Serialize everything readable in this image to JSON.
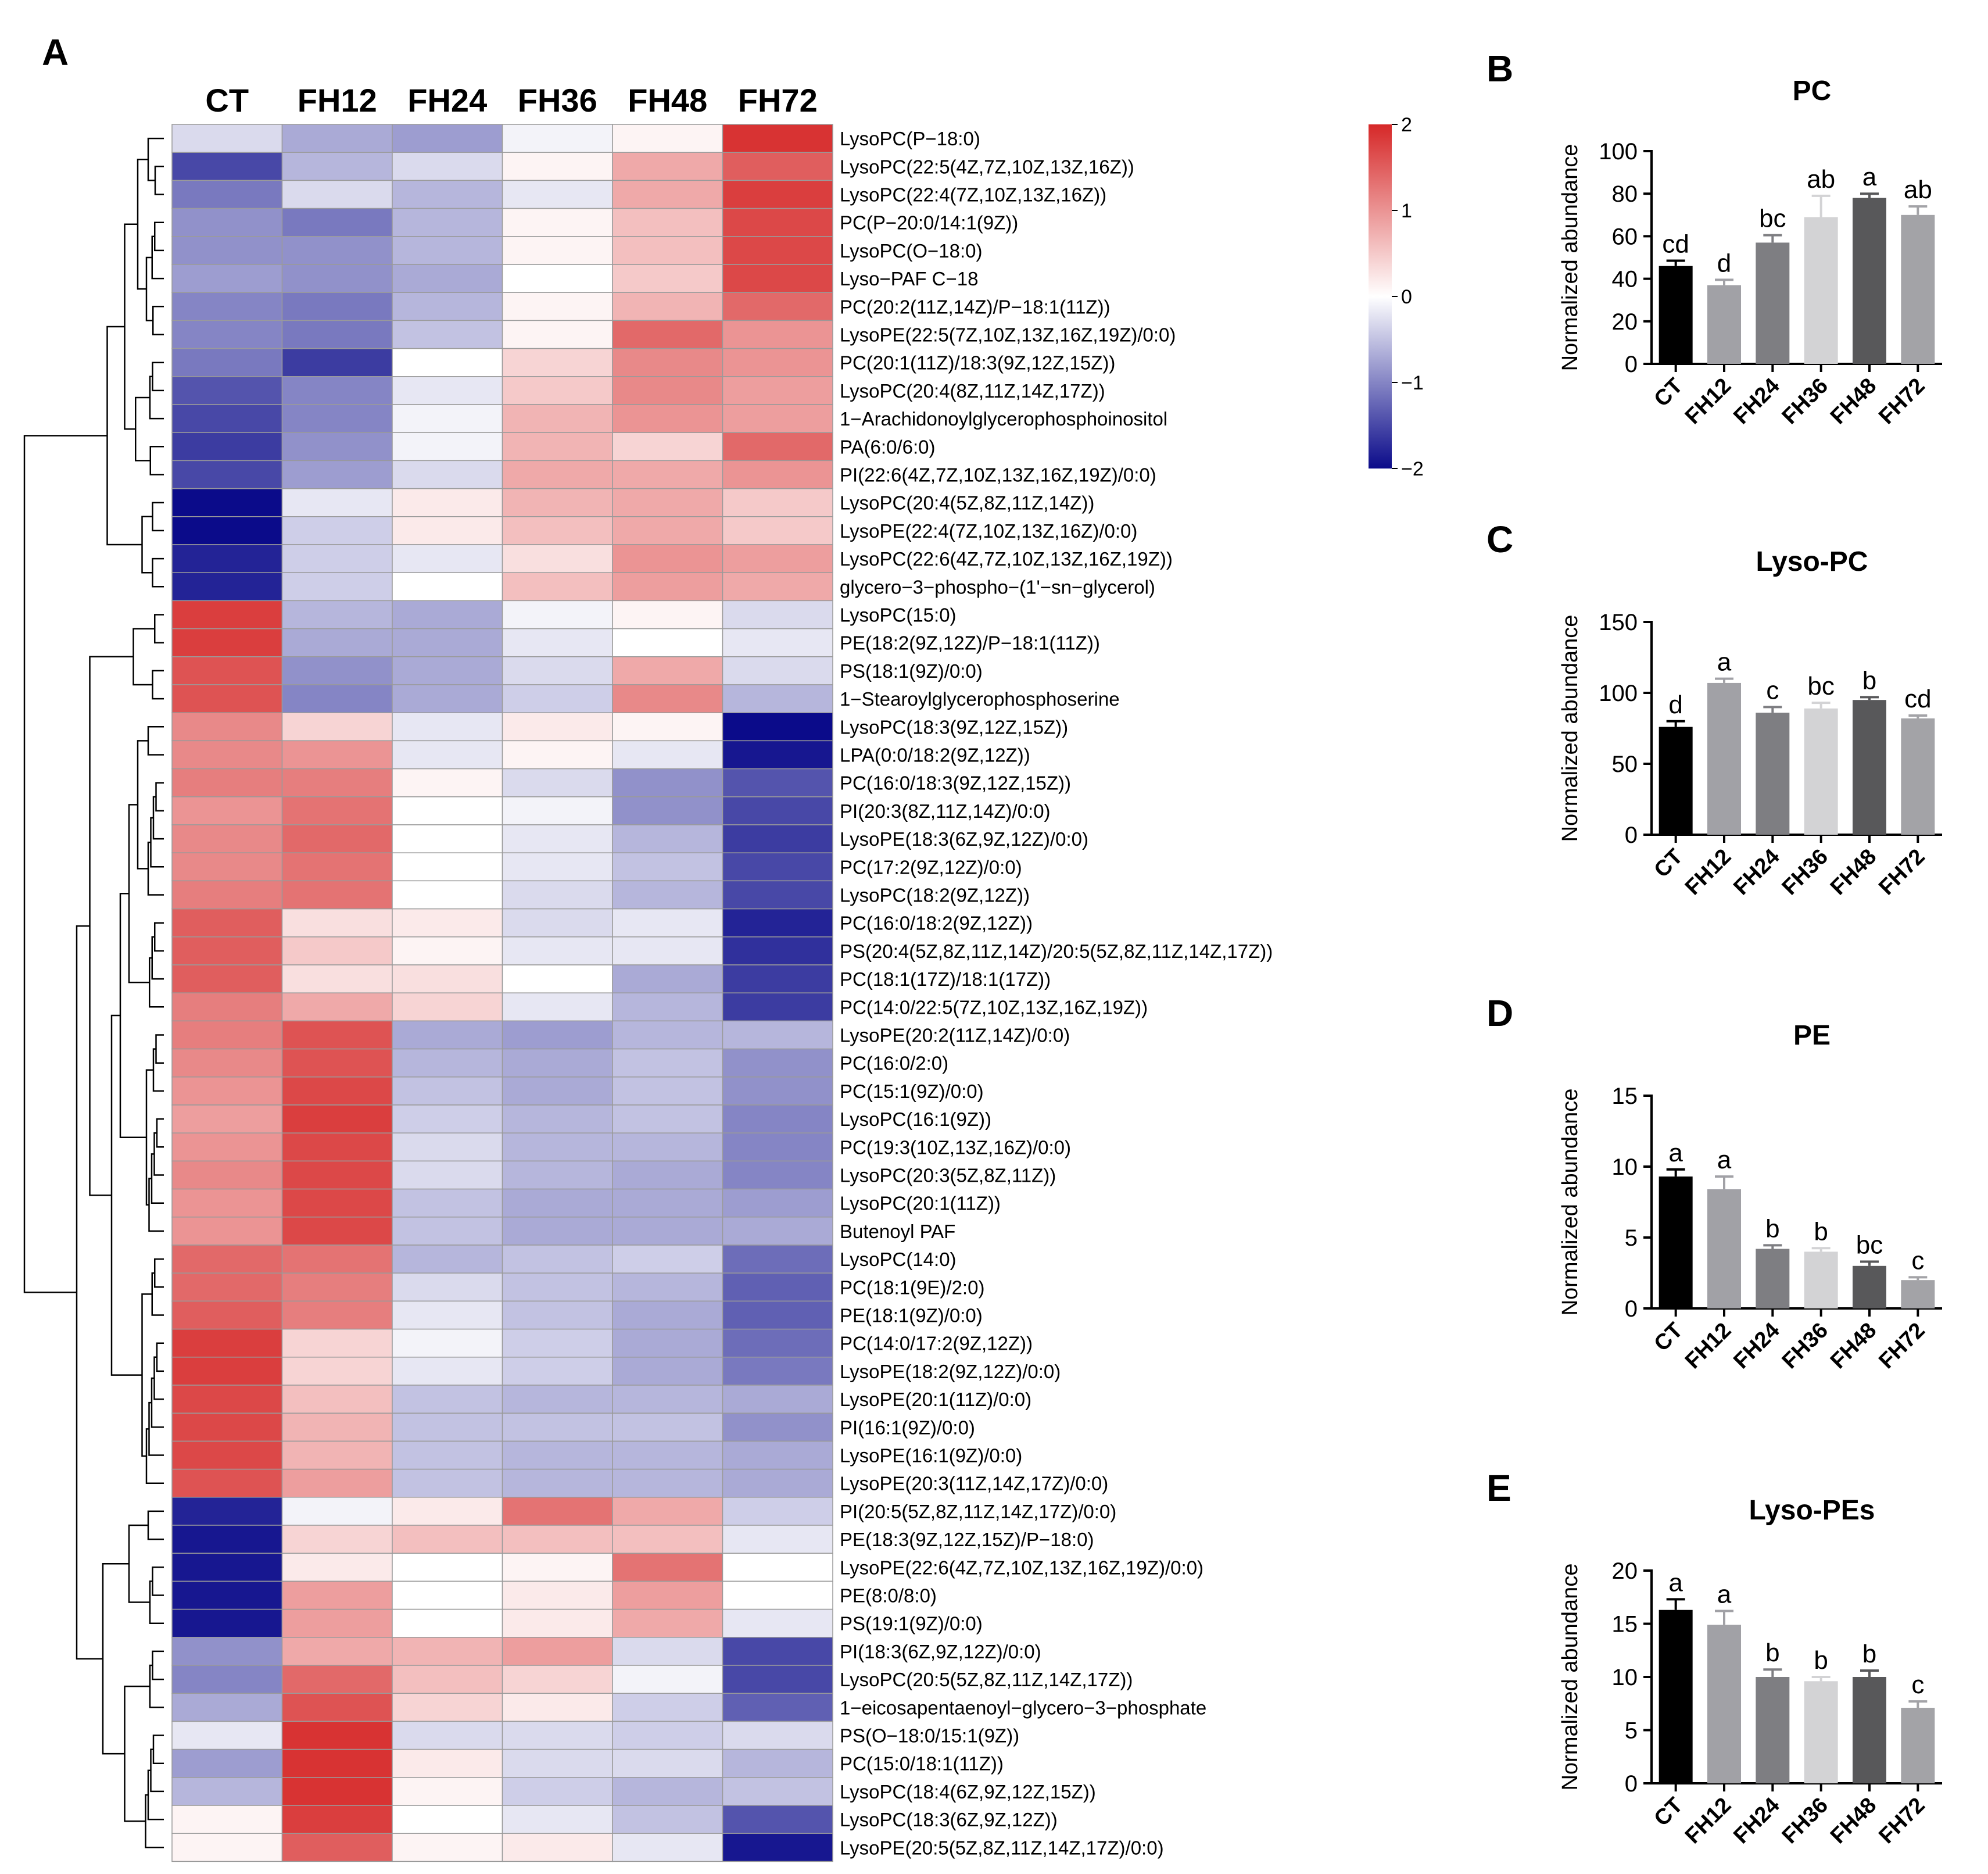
{
  "chart_data": [
    {
      "panel": "A",
      "type": "heatmap",
      "title": "",
      "columns": [
        "CT",
        "FH12",
        "FH24",
        "FH36",
        "FH48",
        "FH72"
      ],
      "legend": {
        "ticks": [
          2,
          1,
          0,
          -1,
          -2
        ],
        "range": [
          -2,
          2
        ],
        "position": "top-right"
      },
      "rows": [
        {
          "label": "LysoPC(P−18:0)",
          "values": [
            -0.3,
            -0.7,
            -0.8,
            -0.1,
            0.1,
            1.9
          ]
        },
        {
          "label": "LysoPC(22:5(4Z,7Z,10Z,13Z,16Z))",
          "values": [
            -1.5,
            -0.6,
            -0.3,
            0.1,
            0.8,
            1.5
          ]
        },
        {
          "label": "LysoPC(22:4(7Z,10Z,13Z,16Z))",
          "values": [
            -1.1,
            -0.3,
            -0.6,
            -0.2,
            0.8,
            1.8
          ]
        },
        {
          "label": "PC(P−20:0/14:1(9Z))",
          "values": [
            -0.9,
            -1.1,
            -0.6,
            0.1,
            0.6,
            1.7
          ]
        },
        {
          "label": "LysoPC(O−18:0)",
          "values": [
            -0.9,
            -0.9,
            -0.6,
            0.1,
            0.6,
            1.7
          ]
        },
        {
          "label": "Lyso−PAF C−18",
          "values": [
            -0.8,
            -0.9,
            -0.7,
            0.0,
            0.5,
            1.7
          ]
        },
        {
          "label": "PC(20:2(11Z,14Z)/P−18:1(11Z))",
          "values": [
            -1.0,
            -1.1,
            -0.6,
            0.1,
            0.7,
            1.4
          ]
        },
        {
          "label": "LysoPE(22:5(7Z,10Z,13Z,16Z,19Z)/0:0)",
          "values": [
            -1.0,
            -1.1,
            -0.5,
            0.1,
            1.4,
            1.0
          ]
        },
        {
          "label": "PC(20:1(11Z)/18:3(9Z,12Z,15Z))",
          "values": [
            -1.1,
            -1.6,
            0.0,
            0.4,
            1.1,
            1.0
          ]
        },
        {
          "label": "LysoPC(20:4(8Z,11Z,14Z,17Z))",
          "values": [
            -1.4,
            -1.0,
            -0.2,
            0.5,
            1.1,
            0.9
          ]
        },
        {
          "label": "1−Arachidonoylglycerophosphoinositol",
          "values": [
            -1.5,
            -1.0,
            -0.1,
            0.7,
            1.0,
            0.9
          ]
        },
        {
          "label": "PA(6:0/6:0)",
          "values": [
            -1.6,
            -0.9,
            -0.1,
            0.7,
            0.4,
            1.4
          ]
        },
        {
          "label": "PI(22:6(4Z,7Z,10Z,13Z,16Z,19Z)/0:0)",
          "values": [
            -1.5,
            -0.8,
            -0.3,
            0.8,
            0.8,
            1.0
          ]
        },
        {
          "label": "LysoPC(20:4(5Z,8Z,11Z,14Z))",
          "values": [
            -2.0,
            -0.2,
            0.2,
            0.7,
            0.8,
            0.5
          ]
        },
        {
          "label": "LysoPE(22:4(7Z,10Z,13Z,16Z)/0:0)",
          "values": [
            -2.0,
            -0.4,
            0.2,
            0.6,
            0.8,
            0.5
          ]
        },
        {
          "label": "LysoPC(22:6(4Z,7Z,10Z,13Z,16Z,19Z))",
          "values": [
            -1.8,
            -0.4,
            -0.2,
            0.3,
            1.0,
            0.9
          ]
        },
        {
          "label": "glycero−3−phospho−(1'−sn−glycerol)",
          "values": [
            -1.8,
            -0.4,
            0.0,
            0.6,
            0.9,
            0.8
          ]
        },
        {
          "label": "LysoPC(15:0)",
          "values": [
            1.8,
            -0.6,
            -0.7,
            -0.1,
            0.1,
            -0.3
          ]
        },
        {
          "label": "PE(18:2(9Z,12Z)/P−18:1(11Z))",
          "values": [
            1.8,
            -0.7,
            -0.7,
            -0.2,
            0.0,
            -0.2
          ]
        },
        {
          "label": "PS(18:1(9Z)/0:0)",
          "values": [
            1.6,
            -0.9,
            -0.7,
            -0.3,
            0.8,
            -0.3
          ]
        },
        {
          "label": "1−Stearoylglycerophosphoserine",
          "values": [
            1.6,
            -1.0,
            -0.7,
            -0.4,
            1.1,
            -0.6
          ]
        },
        {
          "label": "LysoPC(18:3(9Z,12Z,15Z))",
          "values": [
            1.1,
            0.4,
            -0.2,
            0.2,
            0.1,
            -2.0
          ]
        },
        {
          "label": "LPA(0:0/18:2(9Z,12Z))",
          "values": [
            1.1,
            1.0,
            -0.2,
            0.1,
            -0.2,
            -1.9
          ]
        },
        {
          "label": "PC(16:0/18:3(9Z,12Z,15Z))",
          "values": [
            1.2,
            1.2,
            0.1,
            -0.3,
            -0.9,
            -1.4
          ]
        },
        {
          "label": "PI(20:3(8Z,11Z,14Z)/0:0)",
          "values": [
            1.0,
            1.3,
            0.0,
            -0.1,
            -0.9,
            -1.5
          ]
        },
        {
          "label": "LysoPE(18:3(6Z,9Z,12Z)/0:0)",
          "values": [
            1.1,
            1.4,
            0.0,
            -0.2,
            -0.6,
            -1.6
          ]
        },
        {
          "label": "PC(17:2(9Z,12Z)/0:0)",
          "values": [
            1.1,
            1.3,
            0.0,
            -0.2,
            -0.5,
            -1.5
          ]
        },
        {
          "label": "LysoPC(18:2(9Z,12Z))",
          "values": [
            1.2,
            1.3,
            0.0,
            -0.3,
            -0.6,
            -1.5
          ]
        },
        {
          "label": "PC(16:0/18:2(9Z,12Z))",
          "values": [
            1.5,
            0.3,
            0.2,
            -0.3,
            -0.2,
            -1.8
          ]
        },
        {
          "label": "PS(20:4(5Z,8Z,11Z,14Z)/20:5(5Z,8Z,11Z,14Z,17Z))",
          "values": [
            1.5,
            0.5,
            0.1,
            -0.2,
            -0.2,
            -1.7
          ]
        },
        {
          "label": "PC(18:1(17Z)/18:1(17Z))",
          "values": [
            1.5,
            0.3,
            0.3,
            0.0,
            -0.7,
            -1.6
          ]
        },
        {
          "label": "PC(14:0/22:5(7Z,10Z,13Z,16Z,19Z))",
          "values": [
            1.2,
            0.8,
            0.4,
            -0.2,
            -0.6,
            -1.6
          ]
        },
        {
          "label": "LysoPE(20:2(11Z,14Z)/0:0)",
          "values": [
            1.2,
            1.6,
            -0.7,
            -0.8,
            -0.6,
            -0.6
          ]
        },
        {
          "label": "PC(16:0/2:0)",
          "values": [
            1.1,
            1.6,
            -0.6,
            -0.7,
            -0.5,
            -0.9
          ]
        },
        {
          "label": "PC(15:1(9Z)/0:0)",
          "values": [
            1.0,
            1.7,
            -0.5,
            -0.7,
            -0.5,
            -0.9
          ]
        },
        {
          "label": "LysoPC(16:1(9Z))",
          "values": [
            0.9,
            1.8,
            -0.4,
            -0.6,
            -0.5,
            -1.0
          ]
        },
        {
          "label": "PC(19:3(10Z,13Z,16Z)/0:0)",
          "values": [
            1.0,
            1.7,
            -0.3,
            -0.6,
            -0.6,
            -1.0
          ]
        },
        {
          "label": "LysoPC(20:3(5Z,8Z,11Z))",
          "values": [
            1.1,
            1.7,
            -0.3,
            -0.6,
            -0.7,
            -1.0
          ]
        },
        {
          "label": "LysoPC(20:1(11Z))",
          "values": [
            1.0,
            1.7,
            -0.5,
            -0.7,
            -0.7,
            -0.8
          ]
        },
        {
          "label": "Butenoyl PAF",
          "values": [
            1.0,
            1.7,
            -0.5,
            -0.7,
            -0.7,
            -0.7
          ]
        },
        {
          "label": "LysoPC(14:0)",
          "values": [
            1.4,
            1.3,
            -0.6,
            -0.5,
            -0.4,
            -1.2
          ]
        },
        {
          "label": "PC(18:1(9E)/2:0)",
          "values": [
            1.4,
            1.2,
            -0.3,
            -0.5,
            -0.6,
            -1.3
          ]
        },
        {
          "label": "PE(18:1(9Z)/0:0)",
          "values": [
            1.5,
            1.2,
            -0.2,
            -0.5,
            -0.7,
            -1.3
          ]
        },
        {
          "label": "PC(14:0/17:2(9Z,12Z))",
          "values": [
            1.8,
            0.4,
            -0.1,
            -0.4,
            -0.7,
            -1.2
          ]
        },
        {
          "label": "LysoPE(18:2(9Z,12Z)/0:0)",
          "values": [
            1.8,
            0.4,
            -0.2,
            -0.4,
            -0.7,
            -1.1
          ]
        },
        {
          "label": "LysoPE(20:1(11Z)/0:0)",
          "values": [
            1.7,
            0.6,
            -0.5,
            -0.6,
            -0.6,
            -0.7
          ]
        },
        {
          "label": "PI(16:1(9Z)/0:0)",
          "values": [
            1.7,
            0.7,
            -0.5,
            -0.5,
            -0.5,
            -0.9
          ]
        },
        {
          "label": "LysoPE(16:1(9Z)/0:0)",
          "values": [
            1.7,
            0.7,
            -0.5,
            -0.6,
            -0.6,
            -0.7
          ]
        },
        {
          "label": "LysoPE(20:3(11Z,14Z,17Z)/0:0)",
          "values": [
            1.6,
            0.9,
            -0.5,
            -0.6,
            -0.6,
            -0.7
          ]
        },
        {
          "label": "PI(20:5(5Z,8Z,11Z,14Z,17Z)/0:0)",
          "values": [
            -1.8,
            -0.1,
            0.2,
            1.3,
            0.8,
            -0.4
          ]
        },
        {
          "label": "PE(18:3(9Z,12Z,15Z)/P−18:0)",
          "values": [
            -1.9,
            0.4,
            0.6,
            0.6,
            0.6,
            -0.2
          ]
        },
        {
          "label": "LysoPE(22:6(4Z,7Z,10Z,13Z,16Z,19Z)/0:0)",
          "values": [
            -1.9,
            0.2,
            0.0,
            0.1,
            1.3,
            0.0
          ]
        },
        {
          "label": "PE(8:0/8:0)",
          "values": [
            -1.9,
            0.9,
            0.0,
            0.2,
            0.9,
            0.0
          ]
        },
        {
          "label": "PS(19:1(9Z)/0:0)",
          "values": [
            -1.9,
            0.9,
            0.0,
            0.2,
            0.8,
            -0.2
          ]
        },
        {
          "label": "PI(18:3(6Z,9Z,12Z)/0:0)",
          "values": [
            -0.9,
            0.8,
            0.7,
            0.9,
            -0.3,
            -1.5
          ]
        },
        {
          "label": "LysoPC(20:5(5Z,8Z,11Z,14Z,17Z))",
          "values": [
            -1.0,
            1.4,
            0.6,
            0.4,
            -0.1,
            -1.5
          ]
        },
        {
          "label": "1−eicosapentaenoyl−glycero−3−phosphate",
          "values": [
            -0.7,
            1.6,
            0.4,
            0.2,
            -0.4,
            -1.3
          ]
        },
        {
          "label": "PS(O−18:0/15:1(9Z))",
          "values": [
            -0.2,
            1.9,
            -0.3,
            -0.3,
            -0.4,
            -0.3
          ]
        },
        {
          "label": "PC(15:0/18:1(11Z))",
          "values": [
            -0.8,
            1.9,
            0.2,
            -0.3,
            -0.3,
            -0.6
          ]
        },
        {
          "label": "LysoPC(18:4(6Z,9Z,12Z,15Z))",
          "values": [
            -0.6,
            1.9,
            0.1,
            -0.4,
            -0.6,
            -0.5
          ]
        },
        {
          "label": "LysoPC(18:3(6Z,9Z,12Z))",
          "values": [
            0.1,
            1.8,
            0.0,
            -0.2,
            -0.5,
            -1.4
          ]
        },
        {
          "label": "LysoPE(20:5(5Z,8Z,11Z,14Z,17Z)/0:0)",
          "values": [
            0.1,
            1.5,
            0.1,
            0.2,
            -0.2,
            -1.9
          ]
        }
      ]
    },
    {
      "panel": "B",
      "type": "bar",
      "title": "PC",
      "ylabel": "Normalized abundance",
      "categories": [
        "CT",
        "FH12",
        "FH24",
        "FH36",
        "FH48",
        "FH72"
      ],
      "values": [
        46,
        37,
        57,
        69,
        78,
        70
      ],
      "errors": [
        2.5,
        2.5,
        3.5,
        10,
        2,
        4
      ],
      "letters": [
        "cd",
        "d",
        "bc",
        "ab",
        "a",
        "ab"
      ],
      "ylim": [
        0,
        100
      ],
      "yticks": [
        0,
        20,
        40,
        60,
        80,
        100
      ],
      "colors": [
        "#000000",
        "#a1a1a6",
        "#7e7e82",
        "#d3d3d5",
        "#58585a",
        "#a3a3a7"
      ]
    },
    {
      "panel": "C",
      "type": "bar",
      "title": "Lyso-PC",
      "ylabel": "Normalized abundance",
      "categories": [
        "CT",
        "FH12",
        "FH24",
        "FH36",
        "FH48",
        "FH72"
      ],
      "values": [
        76,
        107,
        86,
        89,
        95,
        82
      ],
      "errors": [
        4,
        3,
        4,
        4,
        2,
        2
      ],
      "letters": [
        "d",
        "a",
        "c",
        "bc",
        "b",
        "cd"
      ],
      "ylim": [
        0,
        150
      ],
      "yticks": [
        0,
        50,
        100,
        150
      ],
      "colors": [
        "#000000",
        "#a1a1a6",
        "#7e7e82",
        "#d3d3d5",
        "#58585a",
        "#a3a3a7"
      ]
    },
    {
      "panel": "D",
      "type": "bar",
      "title": "PE",
      "ylabel": "Normalized abundance",
      "categories": [
        "CT",
        "FH12",
        "FH24",
        "FH36",
        "FH48",
        "FH72"
      ],
      "values": [
        9.3,
        8.4,
        4.2,
        4.0,
        3.0,
        2.0
      ],
      "errors": [
        0.5,
        0.9,
        0.25,
        0.25,
        0.3,
        0.2
      ],
      "letters": [
        "a",
        "a",
        "b",
        "b",
        "bc",
        "c"
      ],
      "ylim": [
        0,
        15
      ],
      "yticks": [
        0,
        5,
        10,
        15
      ],
      "colors": [
        "#000000",
        "#a1a1a6",
        "#7e7e82",
        "#d3d3d5",
        "#58585a",
        "#a3a3a7"
      ]
    },
    {
      "panel": "E",
      "type": "bar",
      "title": "Lyso-PEs",
      "ylabel": "Normalized abundance",
      "categories": [
        "CT",
        "FH12",
        "FH24",
        "FH36",
        "FH48",
        "FH72"
      ],
      "values": [
        16.3,
        14.9,
        10.0,
        9.6,
        10.0,
        7.1
      ],
      "errors": [
        1.0,
        1.3,
        0.7,
        0.4,
        0.6,
        0.6
      ],
      "letters": [
        "a",
        "a",
        "b",
        "b",
        "b",
        "c"
      ],
      "ylim": [
        0,
        20
      ],
      "yticks": [
        0,
        5,
        10,
        15,
        20
      ],
      "colors": [
        "#000000",
        "#a1a1a6",
        "#7e7e82",
        "#d3d3d5",
        "#58585a",
        "#a3a3a7"
      ]
    }
  ]
}
